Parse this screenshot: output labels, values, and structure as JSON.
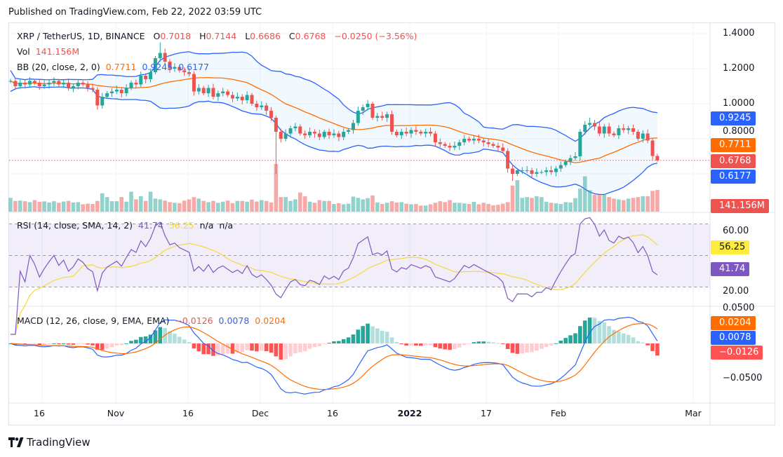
{
  "header": {
    "published": "Published on TradingView.com, Feb 22, 2022 03:59 UTC"
  },
  "legend": {
    "symbol": "XRP / TetherUS, 1D, BINANCE",
    "o_label": "O",
    "o": "0.7018",
    "h_label": "H",
    "h": "0.7144",
    "l_label": "L",
    "l": "0.6686",
    "c_label": "C",
    "c": "0.6768",
    "change": "−0.0250 (−3.56%)",
    "vol_label": "Vol",
    "vol": "141.156M",
    "bb_label": "BB (20, close, 2, 0)",
    "bb_basis": "0.7711",
    "bb_upper": "0.9245",
    "bb_lower": "0.6177",
    "rsi_label": "RSI (14, close, SMA, 14, 2)",
    "rsi": "41.74",
    "rsi_ma": "56.25",
    "rsi_na1": "n/a",
    "rsi_na2": "n/a",
    "macd_label": "MACD (12, 26, close, 9, EMA, EMA)",
    "macd_hist": "−0.0126",
    "macd": "0.0078",
    "macd_signal": "0.0204"
  },
  "price_axis": {
    "ticks": [
      "1.4000",
      "1.2000",
      "1.0000",
      "0.8000"
    ]
  },
  "rsi_axis": {
    "ticks": [
      "60.00",
      "20.00"
    ]
  },
  "macd_axis": {
    "ticks": [
      "0.0500",
      "−0.0500"
    ]
  },
  "time_axis": {
    "labels": [
      "16",
      "Nov",
      "16",
      "Dec",
      "16",
      "2022",
      "17",
      "Feb",
      "Mar"
    ]
  },
  "badges": {
    "bb_upper": "0.9245",
    "bb_basis": "0.7711",
    "last": "0.6768",
    "bb_lower": "0.6177",
    "volume": "141.156M",
    "rsi_ma": "56.25",
    "rsi": "41.74",
    "macd_signal": "0.0204",
    "macd": "0.0078",
    "macd_hist": "−0.0126"
  },
  "colors": {
    "up": "#26a69a",
    "down": "#ef5350",
    "bb_band": "#2962ff",
    "bb_basis": "#ff6d00",
    "rsi": "#7e57c2",
    "rsi_ma": "#f5d93a",
    "macd": "#2962ff",
    "signal": "#ff6d00"
  },
  "footer": {
    "brand": "TradingView"
  },
  "chart_data": {
    "type": "candlestick",
    "symbol": "XRP / TetherUS",
    "interval": "1D",
    "start_date": "2021-10-10",
    "end_date": "2022-02-21",
    "ylim": [
      0.55,
      1.42
    ],
    "grid": true,
    "close": [
      1.13,
      1.1,
      1.12,
      1.11,
      1.13,
      1.12,
      1.1,
      1.11,
      1.12,
      1.13,
      1.11,
      1.12,
      1.09,
      1.1,
      1.12,
      1.11,
      1.09,
      1.08,
      0.99,
      1.04,
      1.06,
      1.07,
      1.08,
      1.06,
      1.09,
      1.12,
      1.11,
      1.16,
      1.14,
      1.18,
      1.26,
      1.29,
      1.24,
      1.2,
      1.21,
      1.19,
      1.18,
      1.17,
      1.07,
      1.09,
      1.06,
      1.09,
      1.04,
      1.06,
      1.07,
      1.05,
      1.03,
      1.04,
      1.02,
      1.05,
      1.0,
      0.98,
      0.99,
      0.96,
      0.92,
      0.84,
      0.8,
      0.83,
      0.86,
      0.87,
      0.83,
      0.82,
      0.84,
      0.83,
      0.81,
      0.84,
      0.82,
      0.83,
      0.81,
      0.84,
      0.85,
      0.89,
      0.96,
      0.98,
      1.0,
      0.92,
      0.93,
      0.92,
      0.94,
      0.84,
      0.82,
      0.84,
      0.83,
      0.85,
      0.84,
      0.83,
      0.84,
      0.83,
      0.78,
      0.77,
      0.76,
      0.75,
      0.76,
      0.78,
      0.8,
      0.79,
      0.8,
      0.79,
      0.78,
      0.77,
      0.76,
      0.75,
      0.73,
      0.63,
      0.6,
      0.62,
      0.62,
      0.62,
      0.6,
      0.61,
      0.61,
      0.62,
      0.61,
      0.63,
      0.65,
      0.67,
      0.69,
      0.7,
      0.84,
      0.88,
      0.89,
      0.87,
      0.83,
      0.87,
      0.83,
      0.82,
      0.86,
      0.85,
      0.86,
      0.84,
      0.8,
      0.83,
      0.79,
      0.7018,
      0.6768
    ],
    "volume_millions": [
      90,
      70,
      72,
      68,
      62,
      75,
      64,
      67,
      60,
      68,
      58,
      66,
      70,
      60,
      62,
      48,
      52,
      50,
      70,
      120,
      95,
      68,
      68,
      95,
      65,
      130,
      80,
      100,
      70,
      130,
      85,
      80,
      72,
      62,
      58,
      55,
      72,
      80,
      95,
      85,
      70,
      62,
      70,
      58,
      65,
      72,
      55,
      70,
      70,
      65,
      78,
      66,
      75,
      70,
      60,
      310,
      95,
      95,
      70,
      80,
      125,
      100,
      65,
      58,
      75,
      70,
      70,
      50,
      55,
      48,
      52,
      98,
      90,
      80,
      88,
      105,
      60,
      50,
      58,
      68,
      60,
      62,
      52,
      48,
      50,
      40,
      40,
      48,
      58,
      68,
      62,
      75,
      58,
      58,
      54,
      50,
      64,
      48,
      58,
      50,
      42,
      45,
      52,
      62,
      170,
      205,
      90,
      95,
      90,
      100,
      95,
      65,
      58,
      55,
      50,
      62,
      60,
      88,
      150,
      230,
      140,
      110,
      115,
      110,
      95,
      85,
      80,
      75,
      85,
      90,
      95,
      100,
      100,
      135,
      141.156
    ],
    "wick_extremes": [
      {
        "date": "2021-11-10",
        "high": 1.35
      },
      {
        "date": "2021-12-04",
        "low": 0.6
      },
      {
        "date": "2022-01-22",
        "low": 0.56
      },
      {
        "date": "2022-02-07",
        "high": 0.92
      }
    ],
    "last_bar": {
      "open": 0.7018,
      "high": 0.7144,
      "low": 0.6686,
      "close": 0.6768,
      "volume": "141.156M"
    },
    "indicators": {
      "bollinger": {
        "length": 20,
        "mult": 2,
        "basis": 0.7711,
        "upper": 0.9245,
        "lower": 0.6177
      },
      "rsi": {
        "length": 14,
        "ma_length": 14,
        "value": 41.74,
        "ma": 56.25,
        "levels": [
          70,
          50,
          30
        ]
      },
      "macd": {
        "fast": 12,
        "slow": 26,
        "signal": 9,
        "macd": 0.0078,
        "signal_value": 0.0204,
        "histogram": -0.0126
      }
    }
  }
}
